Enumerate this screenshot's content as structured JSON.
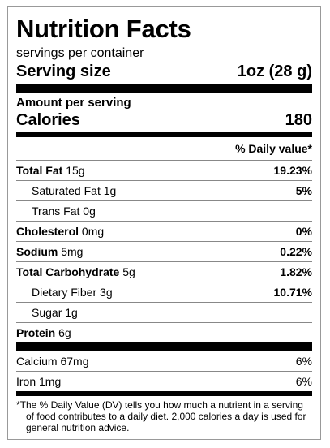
{
  "label": {
    "title": "Nutrition Facts",
    "servings_per_container": "servings per container",
    "serving_size_label": "Serving size",
    "serving_size_value": "1oz (28 g)",
    "amount_per_serving": "Amount per serving",
    "calories_label": "Calories",
    "calories_value": "180",
    "daily_value_header": "% Daily value*"
  },
  "nutrients": [
    {
      "name": "Total Fat",
      "amount": "15g",
      "dv": "19.23%",
      "bold": true,
      "indent": false
    },
    {
      "name": "Saturated Fat",
      "amount": "1g",
      "dv": "5%",
      "bold": false,
      "indent": true
    },
    {
      "name": "Trans Fat",
      "amount": "0g",
      "dv": "",
      "bold": false,
      "indent": true
    },
    {
      "name": "Cholesterol",
      "amount": "0mg",
      "dv": "0%",
      "bold": true,
      "indent": false
    },
    {
      "name": "Sodium",
      "amount": "5mg",
      "dv": "0.22%",
      "bold": true,
      "indent": false
    },
    {
      "name": "Total Carbohydrate",
      "amount": "5g",
      "dv": "1.82%",
      "bold": true,
      "indent": false
    },
    {
      "name": "Dietary Fiber",
      "amount": "3g",
      "dv": "10.71%",
      "bold": false,
      "indent": true
    },
    {
      "name": "Sugar",
      "amount": "1g",
      "dv": "",
      "bold": false,
      "indent": true
    },
    {
      "name": "Protein",
      "amount": "6g",
      "dv": "",
      "bold": true,
      "indent": false
    }
  ],
  "vitamins": [
    {
      "name": "Calcium",
      "amount": "67mg",
      "dv": "6%"
    },
    {
      "name": "Iron",
      "amount": "1mg",
      "dv": "6%"
    }
  ],
  "footnote": "*The % Daily Value (DV) tells you how much a nutrient in a serving of food contributes to a daily diet. 2,000 calories a day is used for general nutrition advice."
}
